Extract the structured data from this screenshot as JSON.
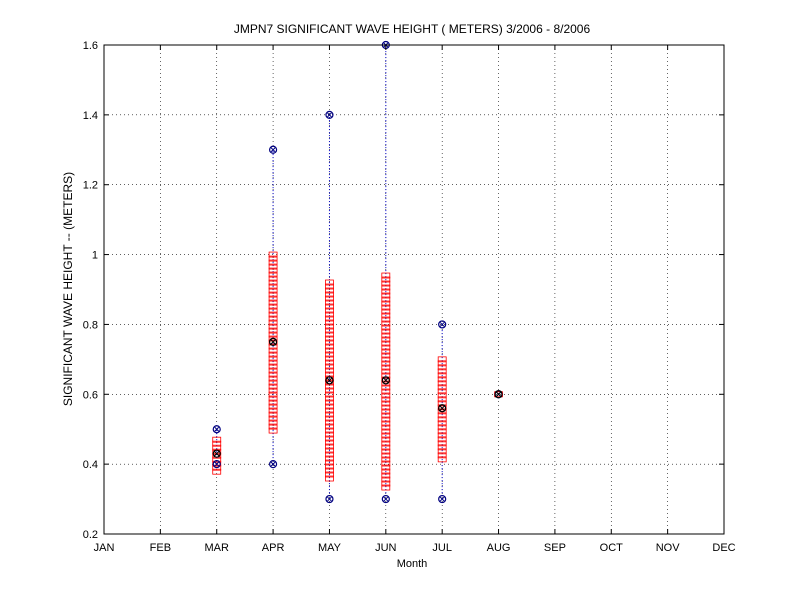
{
  "chart_data": {
    "type": "scatter",
    "title": "JMPN7  SIGNIFICANT WAVE HEIGHT ( METERS) 3/2006 - 8/2006",
    "xlabel": "Month",
    "ylabel": "SIGNIFICANT WAVE HEIGHT -- (METERS)",
    "categories": [
      "JAN",
      "FEB",
      "MAR",
      "APR",
      "MAY",
      "JUN",
      "JUL",
      "AUG",
      "SEP",
      "OCT",
      "NOV",
      "DEC"
    ],
    "yticks": [
      "0.2",
      "0.4",
      "0.6",
      "0.8",
      "1",
      "1.2",
      "1.4",
      "1.6"
    ],
    "ylim": [
      0.2,
      1.6
    ],
    "grid": true,
    "monthly_stats": [
      {
        "month": "MAR",
        "min": 0.4,
        "max": 0.5,
        "mean": 0.43,
        "std_low": 0.37,
        "std_high": 0.47
      },
      {
        "month": "APR",
        "min": 0.4,
        "max": 1.3,
        "mean": 0.75,
        "std_low": 0.49,
        "std_high": 1.0
      },
      {
        "month": "MAY",
        "min": 0.3,
        "max": 1.4,
        "mean": 0.64,
        "std_low": 0.35,
        "std_high": 0.92
      },
      {
        "month": "JUN",
        "min": 0.3,
        "max": 1.6,
        "mean": 0.64,
        "std_low": 0.33,
        "std_high": 0.94
      },
      {
        "month": "JUL",
        "min": 0.3,
        "max": 0.8,
        "mean": 0.56,
        "std_low": 0.41,
        "std_high": 0.7
      },
      {
        "month": "AUG",
        "min": 0.6,
        "max": 0.6,
        "mean": 0.6,
        "std_low": 0.6,
        "std_high": 0.6
      }
    ],
    "colors": {
      "range_line": "#0000cc",
      "extreme_marker": "#000080",
      "std_marker": "#ff0000",
      "mean_marker": "#000000"
    }
  }
}
